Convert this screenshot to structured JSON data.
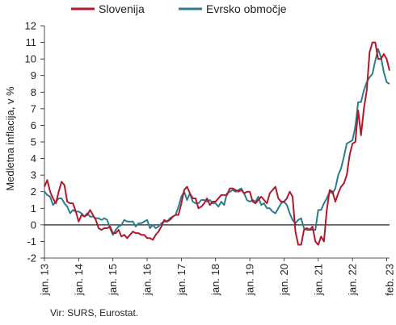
{
  "chart_data": {
    "type": "line",
    "ylabel": "Medletna inflacija, v %",
    "ylim": [
      -2,
      12
    ],
    "yticks": [
      -2,
      -1,
      0,
      1,
      2,
      3,
      4,
      5,
      6,
      7,
      8,
      9,
      10,
      11,
      12
    ],
    "xtick_labels": [
      "jan. 13",
      "jan. 14",
      "jan. 15",
      "jan. 16",
      "jan. 17",
      "jan. 18",
      "jan. 19",
      "jan. 20",
      "jan. 21",
      "jan. 22",
      "feb. 23"
    ],
    "grid": false,
    "legend_position": "top",
    "x_start": "2013-01",
    "series": [
      {
        "name": "Slovenija",
        "color": "#b2182b",
        "values": [
          2.3,
          2.7,
          2.0,
          1.6,
          1.3,
          2.0,
          2.6,
          2.4,
          1.4,
          1.3,
          1.3,
          0.8,
          0.2,
          0.6,
          0.5,
          0.6,
          0.9,
          0.6,
          0.3,
          -0.2,
          -0.3,
          -0.2,
          -0.2,
          -0.1,
          -0.5,
          -0.5,
          -0.3,
          -0.7,
          -0.6,
          -0.8,
          -0.6,
          -0.4,
          -0.5,
          -0.5,
          -0.6,
          -0.6,
          -0.8,
          -0.8,
          -0.9,
          -0.6,
          -0.4,
          -0.1,
          0.3,
          0.2,
          0.3,
          0.5,
          0.6,
          0.6,
          1.3,
          2.1,
          2.3,
          1.9,
          1.6,
          1.6,
          1.0,
          1.1,
          1.3,
          1.6,
          1.2,
          1.4,
          1.4,
          1.6,
          1.8,
          1.8,
          1.8,
          2.2,
          2.2,
          2.1,
          2.0,
          2.1,
          1.9,
          2.0,
          2.0,
          1.4,
          1.3,
          1.5,
          1.7,
          1.5,
          1.3,
          1.9,
          2.1,
          2.3,
          1.6,
          1.4,
          1.4,
          1.6,
          2.0,
          1.7,
          -0.4,
          -1.2,
          -1.2,
          -0.3,
          -0.2,
          -0.3,
          -0.1,
          -1.0,
          -1.2,
          -0.7,
          -1.0,
          0.9,
          2.1,
          2.0,
          1.4,
          1.9,
          2.3,
          2.5,
          3.0,
          4.2,
          4.9,
          5.0,
          6.9,
          5.4,
          7.0,
          8.1,
          10.4,
          11.0,
          11.0,
          10.0,
          10.0,
          10.3,
          10.0,
          9.3
        ]
      },
      {
        "name": "Evrsko območje",
        "color": "#2c7c8c",
        "values": [
          2.0,
          1.8,
          1.7,
          1.2,
          1.4,
          1.6,
          1.6,
          1.3,
          1.1,
          0.7,
          0.9,
          0.8,
          0.8,
          0.7,
          0.5,
          0.7,
          0.5,
          0.5,
          0.4,
          0.4,
          0.3,
          0.4,
          0.3,
          -0.2,
          -0.6,
          -0.3,
          -0.1,
          0.0,
          0.3,
          0.2,
          0.2,
          0.2,
          -0.1,
          0.1,
          0.1,
          0.2,
          0.3,
          -0.2,
          0.0,
          -0.2,
          -0.1,
          0.1,
          0.2,
          0.2,
          0.4,
          0.5,
          0.6,
          1.1,
          1.7,
          2.0,
          1.5,
          1.9,
          1.4,
          1.3,
          1.3,
          1.5,
          1.5,
          1.4,
          1.5,
          1.3,
          1.3,
          1.1,
          1.4,
          1.2,
          1.9,
          2.0,
          2.1,
          2.0,
          2.1,
          2.2,
          1.9,
          1.5,
          1.4,
          1.5,
          1.4,
          1.7,
          1.2,
          1.3,
          1.0,
          1.0,
          0.8,
          0.7,
          1.0,
          1.3,
          1.4,
          1.2,
          0.7,
          0.3,
          0.1,
          0.3,
          0.4,
          -0.2,
          -0.3,
          -0.3,
          -0.3,
          -0.3,
          0.9,
          0.9,
          1.3,
          1.6,
          2.0,
          1.9,
          2.2,
          3.0,
          3.4,
          4.1,
          4.9,
          5.0,
          5.1,
          5.9,
          7.4,
          7.4,
          8.1,
          8.6,
          8.9,
          9.1,
          9.9,
          10.6,
          10.1,
          9.2,
          8.6,
          8.5
        ]
      }
    ]
  },
  "source": "Vir: SURS, Eurostat."
}
